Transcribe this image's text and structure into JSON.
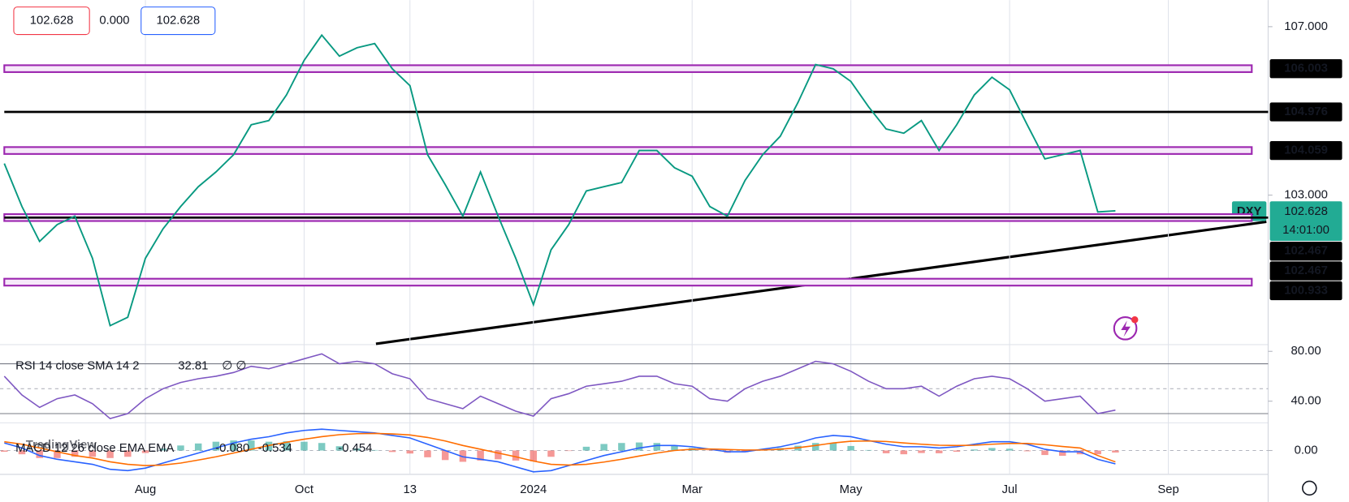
{
  "chart_data": [
    {
      "type": "line",
      "symbol": "DXY",
      "countdown": "14:01:00",
      "change": {
        "value": 0,
        "label": "0.000"
      },
      "watermark": "TradingView",
      "categories": [
        null,
        null,
        null,
        null,
        null,
        null,
        null,
        null,
        "Aug",
        null,
        null,
        null,
        null,
        null,
        null,
        null,
        null,
        "Oct",
        null,
        null,
        null,
        null,
        null,
        "13",
        null,
        null,
        null,
        null,
        null,
        null,
        "2024",
        null,
        null,
        null,
        null,
        null,
        null,
        null,
        null,
        "Mar",
        null,
        null,
        null,
        null,
        null,
        null,
        null,
        null,
        "May",
        null,
        null,
        null,
        null,
        null,
        null,
        null,
        null,
        "Jul",
        null,
        null,
        null,
        null,
        null,
        null,
        null,
        null,
        "Sep",
        null,
        null,
        null,
        null,
        null
      ],
      "values": [
        103.75,
        102.73,
        101.9,
        102.3,
        102.5,
        101.5,
        99.9,
        100.1,
        101.5,
        102.2,
        102.73,
        103.2,
        103.55,
        103.96,
        104.67,
        104.77,
        105.38,
        106.2,
        106.8,
        106.3,
        106.5,
        106.6,
        106.0,
        105.6,
        103.96,
        103.25,
        102.5,
        103.55,
        102.5,
        101.5,
        100.4,
        101.7,
        102.3,
        103.1,
        103.2,
        103.3,
        104.06,
        104.06,
        103.65,
        103.45,
        102.73,
        102.5,
        103.35,
        103.96,
        104.4,
        105.2,
        106.1,
        106.0,
        105.7,
        105.1,
        104.57,
        104.47,
        104.77,
        104.06,
        104.67,
        105.38,
        105.8,
        105.5,
        104.67,
        103.86,
        103.96,
        104.06,
        102.6,
        102.628,
        null,
        null,
        null,
        null,
        null,
        null,
        null,
        null
      ],
      "color": "#089981",
      "ylim": [
        99.47,
        107.63
      ],
      "yticks": [
        {
          "value": 103,
          "label": "103.000"
        },
        {
          "value": 107,
          "label": "107.000"
        }
      ],
      "levels": [
        {
          "value": 106.003,
          "style": "zone"
        },
        {
          "value": 104.976,
          "style": "line"
        },
        {
          "value": 104.059,
          "style": "zone"
        },
        {
          "value": 102.467,
          "style": "zone"
        },
        {
          "value": 102.467,
          "style": "line"
        },
        {
          "value": 100.933,
          "style": "zone"
        }
      ],
      "zone_color": "#9c27b0",
      "line_color": "#000000",
      "grid": true
    },
    {
      "type": "line",
      "title": "RSI 14 close SMA 14 2",
      "flags": "∅ ∅",
      "values": [
        60,
        45,
        35,
        42,
        45,
        38,
        26,
        30,
        42,
        50,
        55,
        58,
        60,
        63,
        68,
        66,
        70,
        74,
        78,
        70,
        72,
        70,
        62,
        58,
        42,
        38,
        34,
        44,
        38,
        32,
        28,
        42,
        46,
        52,
        54,
        56,
        60,
        60,
        54,
        52,
        42,
        40,
        50,
        56,
        60,
        66,
        72,
        70,
        64,
        56,
        50,
        50,
        52,
        44,
        52,
        58,
        60,
        58,
        50,
        40,
        42,
        44,
        30,
        32.81,
        null,
        null,
        null,
        null,
        null,
        null,
        null,
        null
      ],
      "color": "#7e57c2",
      "ylim": [
        24,
        84
      ],
      "yticks": [
        {
          "value": 80,
          "label": "80.00"
        },
        {
          "value": 40,
          "label": "40.00"
        }
      ],
      "bands": [
        70,
        30
      ],
      "midline": 50
    },
    {
      "type": "macd",
      "title": "MACD 12 26 close EMA EMA",
      "histogram_readout": "-0.080",
      "histogram": [
        -0.05,
        -0.15,
        -0.3,
        -0.3,
        -0.25,
        -0.25,
        -0.3,
        -0.25,
        -0.1,
        0.08,
        0.2,
        0.28,
        0.35,
        0.4,
        0.4,
        0.35,
        0.37,
        0.35,
        0.3,
        0.17,
        0.08,
        0.02,
        -0.06,
        -0.12,
        -0.27,
        -0.38,
        -0.45,
        -0.4,
        -0.35,
        -0.4,
        -0.43,
        -0.25,
        -0.02,
        0.15,
        0.26,
        0.3,
        0.32,
        0.3,
        0.2,
        0.1,
        -0.01,
        -0.09,
        -0.07,
        0.03,
        0.1,
        0.19,
        0.3,
        0.3,
        0.18,
        0.02,
        -0.11,
        -0.15,
        -0.1,
        -0.11,
        -0.05,
        0.04,
        0.1,
        0.07,
        -0.03,
        -0.18,
        -0.21,
        -0.15,
        -0.15,
        -0.08,
        null,
        null,
        null,
        null,
        null,
        null,
        null,
        null
      ],
      "macd": [
        0.3,
        0.1,
        -0.2,
        -0.35,
        -0.45,
        -0.55,
        -0.75,
        -0.8,
        -0.7,
        -0.5,
        -0.3,
        -0.1,
        0.1,
        0.3,
        0.45,
        0.55,
        0.7,
        0.8,
        0.85,
        0.8,
        0.75,
        0.7,
        0.6,
        0.5,
        0.25,
        0.0,
        -0.25,
        -0.35,
        -0.45,
        -0.65,
        -0.85,
        -0.8,
        -0.6,
        -0.4,
        -0.2,
        -0.05,
        0.1,
        0.2,
        0.2,
        0.15,
        0.05,
        -0.05,
        -0.05,
        0.05,
        0.15,
        0.3,
        0.5,
        0.6,
        0.55,
        0.4,
        0.25,
        0.15,
        0.15,
        0.1,
        0.15,
        0.25,
        0.35,
        0.35,
        0.25,
        0.05,
        -0.05,
        -0.05,
        -0.35,
        -0.534,
        null,
        null,
        null,
        null,
        null,
        null,
        null,
        null
      ],
      "signal": [
        0.35,
        0.25,
        0.1,
        -0.05,
        -0.2,
        -0.3,
        -0.45,
        -0.55,
        -0.6,
        -0.58,
        -0.5,
        -0.38,
        -0.25,
        -0.1,
        0.05,
        0.2,
        0.33,
        0.45,
        0.55,
        0.63,
        0.67,
        0.68,
        0.66,
        0.62,
        0.52,
        0.38,
        0.2,
        0.05,
        -0.1,
        -0.25,
        -0.42,
        -0.55,
        -0.58,
        -0.55,
        -0.46,
        -0.35,
        -0.22,
        -0.1,
        0.0,
        0.05,
        0.06,
        0.04,
        0.02,
        0.02,
        0.05,
        0.11,
        0.2,
        0.3,
        0.37,
        0.38,
        0.36,
        0.3,
        0.25,
        0.21,
        0.2,
        0.21,
        0.25,
        0.28,
        0.28,
        0.23,
        0.16,
        0.1,
        -0.2,
        -0.454,
        null,
        null,
        null,
        null,
        null,
        null,
        null,
        null
      ],
      "macd_color": "#2962ff",
      "signal_color": "#ff6d00",
      "up_color": "#26a69a",
      "down_color": "#ef5350",
      "ylim": [
        -0.95,
        1.0
      ],
      "yticks": [
        {
          "value": 0,
          "label": "0.00"
        }
      ]
    }
  ]
}
